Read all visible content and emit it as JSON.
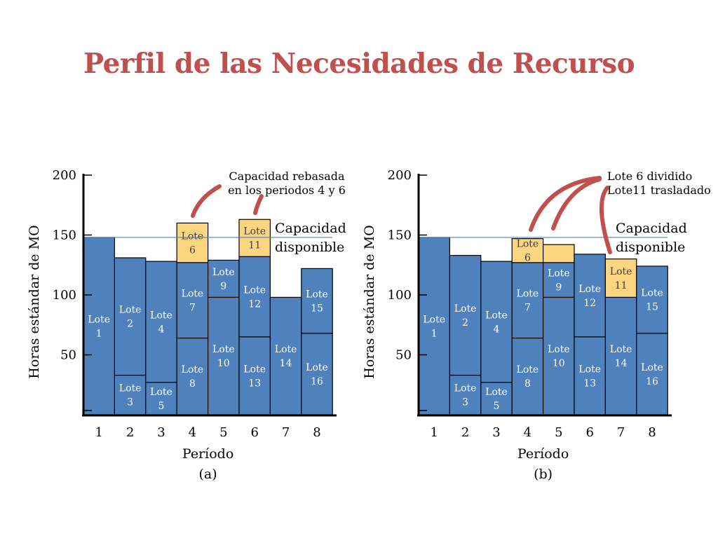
{
  "title": "Perfil de las Necesidades de Recurso",
  "colors": {
    "title": "#c0504d",
    "bar_fill": "#4f81bd",
    "overflow_fill": "#fcd581",
    "bar_stroke": "#000000",
    "capacity_line": "#4f81bd",
    "annotation_arrow": "#c0504d"
  },
  "chart_data": [
    {
      "type": "bar",
      "stacked": true,
      "panel_label": "(a)",
      "xlabel": "Período",
      "ylabel": "Horas estándar de MO",
      "ylim": [
        0,
        200
      ],
      "yticks": [
        50,
        100,
        150,
        200
      ],
      "categories": [
        "1",
        "2",
        "3",
        "4",
        "5",
        "6",
        "7",
        "8"
      ],
      "capacity": 148,
      "capacity_label": [
        "Capacidad",
        "disponible"
      ],
      "overflow_annotation": [
        "Capacidad rebasada",
        "en los periodos 4 y 6"
      ],
      "segments": [
        {
          "period": 1,
          "from": 0,
          "to": 148,
          "label": [
            "Lote",
            "1"
          ],
          "overflow": false
        },
        {
          "period": 2,
          "from": 0,
          "to": 33,
          "label": [
            "Lote",
            "3"
          ],
          "overflow": false
        },
        {
          "period": 2,
          "from": 33,
          "to": 131,
          "label": [
            "Lote",
            "2"
          ],
          "overflow": false
        },
        {
          "period": 3,
          "from": 0,
          "to": 27,
          "label": [
            "Lote",
            "5"
          ],
          "overflow": false
        },
        {
          "period": 3,
          "from": 27,
          "to": 128,
          "label": [
            "Lote",
            "4"
          ],
          "overflow": false
        },
        {
          "period": 4,
          "from": 0,
          "to": 64,
          "label": [
            "Lote",
            "8"
          ],
          "overflow": false
        },
        {
          "period": 4,
          "from": 64,
          "to": 127,
          "label": [
            "Lote",
            "7"
          ],
          "overflow": false
        },
        {
          "period": 4,
          "from": 127,
          "to": 160,
          "label": [
            "Lote",
            "6"
          ],
          "overflow": true
        },
        {
          "period": 5,
          "from": 0,
          "to": 98,
          "label": [
            "Lote",
            "10"
          ],
          "overflow": false
        },
        {
          "period": 5,
          "from": 98,
          "to": 129,
          "label": [
            "Lote",
            "9"
          ],
          "overflow": false
        },
        {
          "period": 6,
          "from": 0,
          "to": 65,
          "label": [
            "Lote",
            "13"
          ],
          "overflow": false
        },
        {
          "period": 6,
          "from": 65,
          "to": 132,
          "label": [
            "Lote",
            "12"
          ],
          "overflow": false
        },
        {
          "period": 6,
          "from": 132,
          "to": 163,
          "label": [
            "Lote",
            "11"
          ],
          "overflow": true
        },
        {
          "period": 7,
          "from": 0,
          "to": 98,
          "label": [
            "Lote",
            "14"
          ],
          "overflow": false
        },
        {
          "period": 8,
          "from": 0,
          "to": 68,
          "label": [
            "Lote",
            "16"
          ],
          "overflow": false
        },
        {
          "period": 8,
          "from": 68,
          "to": 122,
          "label": [
            "Lote",
            "15"
          ],
          "overflow": false
        }
      ]
    },
    {
      "type": "bar",
      "stacked": true,
      "panel_label": "(b)",
      "xlabel": "Período",
      "ylabel": "Horas estándar de MO",
      "ylim": [
        0,
        200
      ],
      "yticks": [
        50,
        100,
        150,
        200
      ],
      "categories": [
        "1",
        "2",
        "3",
        "4",
        "5",
        "6",
        "7",
        "8"
      ],
      "capacity": 148,
      "capacity_label": [
        "Capacidad",
        "disponible"
      ],
      "change_annotation": [
        "Lote 6 dividido",
        "Lote11 trasladado"
      ],
      "segments": [
        {
          "period": 1,
          "from": 0,
          "to": 148,
          "label": [
            "Lote",
            "1"
          ],
          "overflow": false
        },
        {
          "period": 2,
          "from": 0,
          "to": 33,
          "label": [
            "Lote",
            "3"
          ],
          "overflow": false
        },
        {
          "period": 2,
          "from": 33,
          "to": 133,
          "label": [
            "Lote",
            "2"
          ],
          "overflow": false
        },
        {
          "period": 3,
          "from": 0,
          "to": 27,
          "label": [
            "Lote",
            "5"
          ],
          "overflow": false
        },
        {
          "period": 3,
          "from": 27,
          "to": 128,
          "label": [
            "Lote",
            "4"
          ],
          "overflow": false
        },
        {
          "period": 4,
          "from": 0,
          "to": 64,
          "label": [
            "Lote",
            "8"
          ],
          "overflow": false
        },
        {
          "period": 4,
          "from": 64,
          "to": 127,
          "label": [
            "Lote",
            "7"
          ],
          "overflow": false
        },
        {
          "period": 4,
          "from": 127,
          "to": 147,
          "label": [
            "Lote",
            "6"
          ],
          "overflow": true
        },
        {
          "period": 5,
          "from": 0,
          "to": 98,
          "label": [
            "Lote",
            "10"
          ],
          "overflow": false
        },
        {
          "period": 5,
          "from": 98,
          "to": 127,
          "label": [
            "Lote",
            "9"
          ],
          "overflow": false
        },
        {
          "period": 5,
          "from": 127,
          "to": 142,
          "label": [],
          "overflow": true
        },
        {
          "period": 6,
          "from": 0,
          "to": 65,
          "label": [
            "Lote",
            "13"
          ],
          "overflow": false
        },
        {
          "period": 6,
          "from": 65,
          "to": 134,
          "label": [
            "Lote",
            "12"
          ],
          "overflow": false
        },
        {
          "period": 7,
          "from": 0,
          "to": 98,
          "label": [
            "Lote",
            "14"
          ],
          "overflow": false
        },
        {
          "period": 7,
          "from": 98,
          "to": 130,
          "label": [
            "Lote",
            "11"
          ],
          "overflow": true
        },
        {
          "period": 8,
          "from": 0,
          "to": 68,
          "label": [
            "Lote",
            "16"
          ],
          "overflow": false
        },
        {
          "period": 8,
          "from": 68,
          "to": 124,
          "label": [
            "Lote",
            "15"
          ],
          "overflow": false
        }
      ]
    }
  ]
}
